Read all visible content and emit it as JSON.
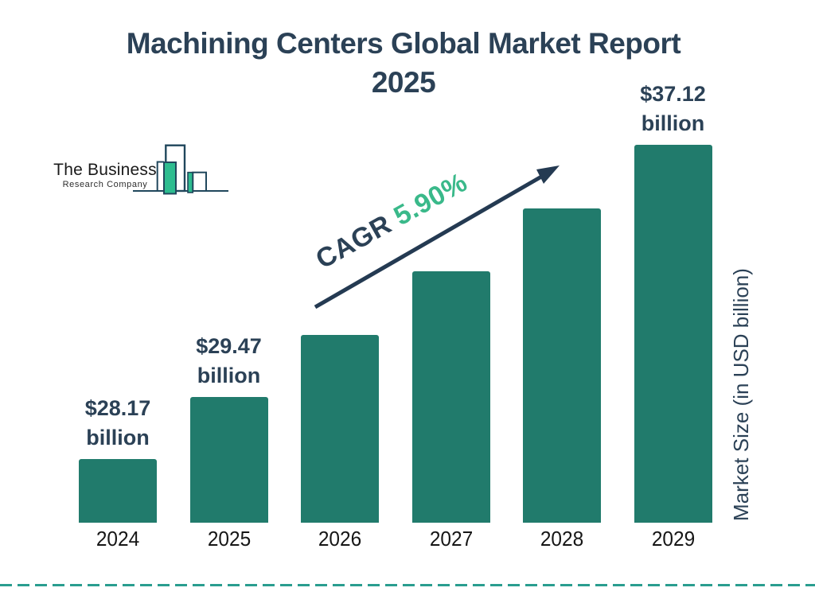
{
  "title": {
    "line1": "Machining Centers Global Market Report",
    "line2": "2025"
  },
  "logo": {
    "name_line1": "The Business",
    "name_line2": "Research Company"
  },
  "cagr": {
    "prefix": "CAGR",
    "value": "5.90%"
  },
  "y_axis_label": "Market Size (in USD billion)",
  "chart_data": {
    "type": "bar",
    "title": "Machining Centers Global Market Report 2025",
    "categories": [
      "2024",
      "2025",
      "2026",
      "2027",
      "2028",
      "2029"
    ],
    "values": [
      28.17,
      29.47,
      31.21,
      33.05,
      35.0,
      37.12
    ],
    "value_labels": [
      {
        "category": "2024",
        "line1": "$28.17",
        "line2": "billion"
      },
      {
        "category": "2025",
        "line1": "$29.47",
        "line2": "billion"
      },
      {
        "category": "2029",
        "line1": "$37.12",
        "line2": "billion"
      }
    ],
    "cagr_text": "CAGR 5.90%",
    "xlabel": "",
    "ylabel": "Market Size (in USD billion)",
    "legend": "none",
    "grid": "off"
  },
  "colors": {
    "bar": "#217b6c",
    "navy_text": "#2b4156",
    "green_accent": "#3ab98a",
    "arrow": "#243a52",
    "dashed_line": "#2a9d8f",
    "logo_outline": "#20475c",
    "logo_green": "#2dbc8f",
    "year_text": "#161616"
  }
}
